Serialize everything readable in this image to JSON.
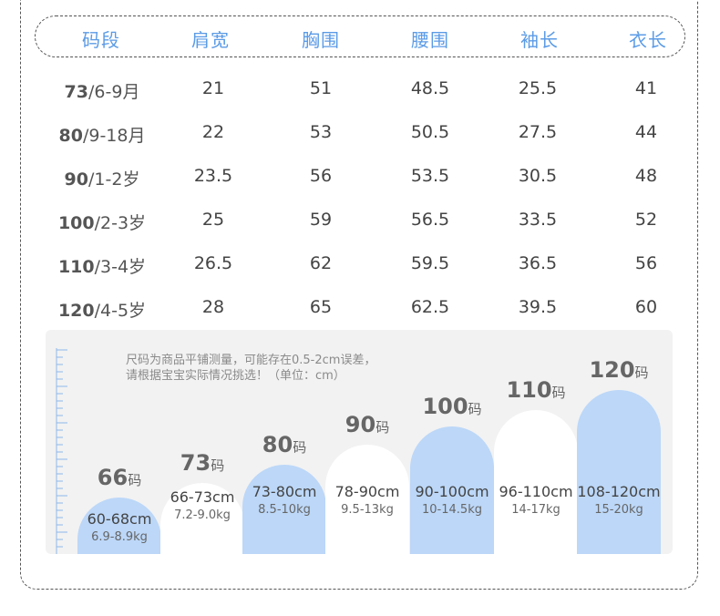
{
  "table": {
    "headers": [
      "码段",
      "肩宽",
      "胸围",
      "腰围",
      "袖长",
      "衣长"
    ],
    "rows": [
      {
        "size": "73",
        "age": "/6-9月",
        "values": [
          "21",
          "51",
          "48.5",
          "25.5",
          "41"
        ]
      },
      {
        "size": "80",
        "age": "/9-18月",
        "values": [
          "22",
          "53",
          "50.5",
          "27.5",
          "44"
        ]
      },
      {
        "size": "90",
        "age": "/1-2岁",
        "values": [
          "23.5",
          "56",
          "53.5",
          "30.5",
          "48"
        ]
      },
      {
        "size": "100",
        "age": "/2-3岁",
        "values": [
          "25",
          "59",
          "56.5",
          "33.5",
          "52"
        ]
      },
      {
        "size": "110",
        "age": "/3-4岁",
        "values": [
          "26.5",
          "62",
          "59.5",
          "36.5",
          "56"
        ]
      },
      {
        "size": "120",
        "age": "/4-5岁",
        "values": [
          "28",
          "65",
          "62.5",
          "39.5",
          "60"
        ]
      }
    ]
  },
  "chart": {
    "note_lines": [
      "尺码为商品平铺测量，可能存在0.5-2cm误差，",
      "请根据宝宝实际情况挑选！（单位：cm）"
    ],
    "unit_suffix": "码",
    "sizes": [
      {
        "size": "66",
        "height_range": "60-68cm",
        "weight_range": "6.9-8.9kg",
        "style": "blue"
      },
      {
        "size": "73",
        "height_range": "66-73cm",
        "weight_range": "7.2-9.0kg",
        "style": "white"
      },
      {
        "size": "80",
        "height_range": "73-80cm",
        "weight_range": "8.5-10kg",
        "style": "blue"
      },
      {
        "size": "90",
        "height_range": "78-90cm",
        "weight_range": "9.5-13kg",
        "style": "white"
      },
      {
        "size": "100",
        "height_range": "90-100cm",
        "weight_range": "10-14.5kg",
        "style": "blue"
      },
      {
        "size": "110",
        "height_range": "96-110cm",
        "weight_range": "14-17kg",
        "style": "white"
      },
      {
        "size": "120",
        "height_range": "108-120cm",
        "weight_range": "15-20kg",
        "style": "blue"
      }
    ]
  }
}
